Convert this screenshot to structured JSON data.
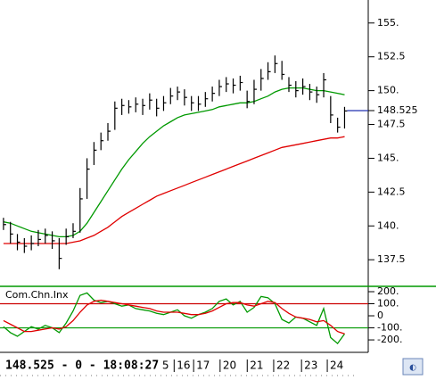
{
  "chart_data": [
    {
      "type": "ohlc",
      "x": [
        0,
        1,
        2,
        3,
        4,
        5,
        6,
        7,
        8,
        9,
        10,
        11,
        12,
        13,
        14,
        15,
        16,
        17,
        18,
        19,
        20,
        21,
        22,
        23,
        24,
        25,
        26,
        27,
        28,
        29,
        30,
        31,
        32,
        33,
        34,
        35,
        36,
        37,
        38,
        39,
        40,
        41,
        42,
        43,
        44,
        45,
        46,
        47,
        48,
        49
      ],
      "high": [
        140.6,
        140.3,
        139.4,
        139.1,
        139.3,
        139.7,
        139.8,
        139.6,
        139.1,
        139.8,
        140.2,
        142.8,
        145.0,
        146.2,
        146.9,
        147.6,
        149.2,
        149.4,
        149.3,
        149.5,
        149.4,
        149.8,
        149.4,
        149.6,
        150.2,
        150.3,
        150.1,
        149.6,
        149.6,
        149.9,
        150.3,
        150.8,
        151.0,
        150.9,
        151.1,
        150.0,
        150.8,
        151.6,
        152.1,
        152.6,
        152.2,
        151.0,
        150.7,
        150.9,
        150.5,
        150.3,
        151.3,
        149.6,
        148.0,
        148.8
      ],
      "low": [
        139.7,
        138.7,
        138.2,
        138.0,
        138.2,
        138.5,
        138.7,
        138.3,
        136.8,
        138.6,
        139.1,
        139.5,
        142.0,
        144.5,
        145.6,
        146.3,
        147.1,
        148.2,
        148.3,
        148.4,
        148.2,
        148.6,
        148.1,
        148.5,
        149.0,
        149.3,
        148.9,
        148.5,
        148.5,
        148.8,
        149.2,
        149.6,
        149.9,
        149.8,
        150.0,
        148.7,
        149.0,
        150.0,
        150.8,
        151.3,
        150.8,
        149.9,
        149.5,
        149.7,
        149.3,
        149.1,
        149.5,
        147.6,
        146.9,
        147.2
      ],
      "close": [
        140.1,
        139.4,
        138.8,
        138.5,
        138.7,
        139.0,
        139.3,
        138.9,
        137.6,
        139.2,
        139.6,
        142.0,
        144.2,
        145.6,
        146.3,
        147.0,
        148.7,
        148.9,
        148.8,
        149.0,
        148.9,
        149.3,
        148.7,
        149.1,
        149.6,
        149.9,
        149.5,
        149.1,
        149.0,
        149.4,
        149.8,
        150.3,
        150.5,
        150.4,
        150.6,
        149.2,
        150.1,
        150.9,
        151.4,
        152.0,
        151.2,
        150.4,
        150.0,
        150.3,
        149.9,
        149.7,
        150.8,
        148.2,
        147.3,
        148.5
      ],
      "bar_color": "#000000",
      "series": [
        {
          "color": "#009900",
          "values": [
            140.3,
            140.2,
            140.0,
            139.8,
            139.6,
            139.5,
            139.4,
            139.3,
            139.2,
            139.2,
            139.3,
            139.6,
            140.2,
            141.0,
            141.8,
            142.6,
            143.4,
            144.2,
            144.9,
            145.5,
            146.1,
            146.6,
            147.0,
            147.4,
            147.7,
            148.0,
            148.2,
            148.3,
            148.4,
            148.5,
            148.6,
            148.8,
            148.9,
            149.0,
            149.1,
            149.1,
            149.2,
            149.4,
            149.6,
            149.9,
            150.1,
            150.2,
            150.2,
            150.2,
            150.1,
            150.0,
            150.0,
            149.9,
            149.8,
            149.7
          ]
        },
        {
          "color": "#e00000",
          "values": [
            138.7,
            138.7,
            138.7,
            138.7,
            138.7,
            138.7,
            138.7,
            138.7,
            138.7,
            138.7,
            138.8,
            138.9,
            139.1,
            139.3,
            139.6,
            139.9,
            140.3,
            140.7,
            141.0,
            141.3,
            141.6,
            141.9,
            142.2,
            142.4,
            142.6,
            142.8,
            143.0,
            143.2,
            143.4,
            143.6,
            143.8,
            144.0,
            144.2,
            144.4,
            144.6,
            144.8,
            145.0,
            145.2,
            145.4,
            145.6,
            145.8,
            145.9,
            146.0,
            146.1,
            146.2,
            146.3,
            146.4,
            146.5,
            146.5,
            146.6
          ]
        }
      ],
      "last_price": {
        "value": 148.525,
        "label": "148.525",
        "color": "#2030b0"
      },
      "xlim": [
        -0.5,
        52.4
      ],
      "xticks": [
        {
          "value": 22.8,
          "label": "5"
        },
        {
          "value": 24.9,
          "label": "16"
        },
        {
          "value": 27.7,
          "label": "17"
        },
        {
          "value": 31.5,
          "label": "20"
        },
        {
          "value": 35.4,
          "label": "21"
        },
        {
          "value": 39.2,
          "label": "22"
        },
        {
          "value": 43.2,
          "label": "23"
        },
        {
          "value": 46.9,
          "label": "24"
        }
      ],
      "ylim": [
        135.6,
        156.7
      ],
      "yticks": [
        {
          "value": 137.5,
          "label": "137.5"
        },
        {
          "value": 140,
          "label": "140."
        },
        142.5,
        {
          "value": 145,
          "label": "145."
        },
        147.5,
        {
          "value": 150,
          "label": "150."
        },
        152.5,
        {
          "value": 155,
          "label": "155."
        }
      ]
    },
    {
      "type": "line",
      "title": "Com.Chn.Inx",
      "x": [
        0,
        1,
        2,
        3,
        4,
        5,
        6,
        7,
        8,
        9,
        10,
        11,
        12,
        13,
        14,
        15,
        16,
        17,
        18,
        19,
        20,
        21,
        22,
        23,
        24,
        25,
        26,
        27,
        28,
        29,
        30,
        31,
        32,
        33,
        34,
        35,
        36,
        37,
        38,
        39,
        40,
        41,
        42,
        43,
        44,
        45,
        46,
        47,
        48,
        49
      ],
      "series": [
        {
          "color": "#009900",
          "values": [
            -90,
            -140,
            -170,
            -130,
            -90,
            -110,
            -80,
            -100,
            -140,
            -60,
            40,
            170,
            190,
            130,
            110,
            120,
            100,
            80,
            90,
            60,
            50,
            40,
            20,
            10,
            30,
            50,
            0,
            -20,
            10,
            30,
            60,
            120,
            140,
            90,
            120,
            30,
            70,
            160,
            150,
            100,
            -30,
            -60,
            -10,
            -20,
            -50,
            -80,
            60,
            -180,
            -230,
            -150
          ]
        },
        {
          "color": "#e00000",
          "values": [
            -40,
            -70,
            -100,
            -130,
            -130,
            -120,
            -110,
            -100,
            -110,
            -90,
            -40,
            30,
            90,
            120,
            130,
            120,
            110,
            100,
            90,
            80,
            70,
            60,
            40,
            30,
            30,
            30,
            20,
            10,
            10,
            20,
            40,
            70,
            100,
            110,
            110,
            90,
            80,
            100,
            120,
            110,
            60,
            20,
            -10,
            -20,
            -30,
            -50,
            -40,
            -80,
            -130,
            -150
          ]
        }
      ],
      "hlines": [
        {
          "value": 100,
          "color": "#cc0000"
        },
        {
          "value": -100,
          "color": "#009900"
        }
      ],
      "xlim": [
        -0.5,
        52.4
      ],
      "ylim": [
        -281,
        237
      ],
      "yticks": [
        {
          "value": -200,
          "label": "-200."
        },
        {
          "value": -100,
          "label": "-100."
        },
        0,
        {
          "value": 100,
          "label": "100."
        },
        {
          "value": 200,
          "label": "200."
        }
      ]
    }
  ],
  "status_bar": "148.525 - 0 - 18:08:27"
}
